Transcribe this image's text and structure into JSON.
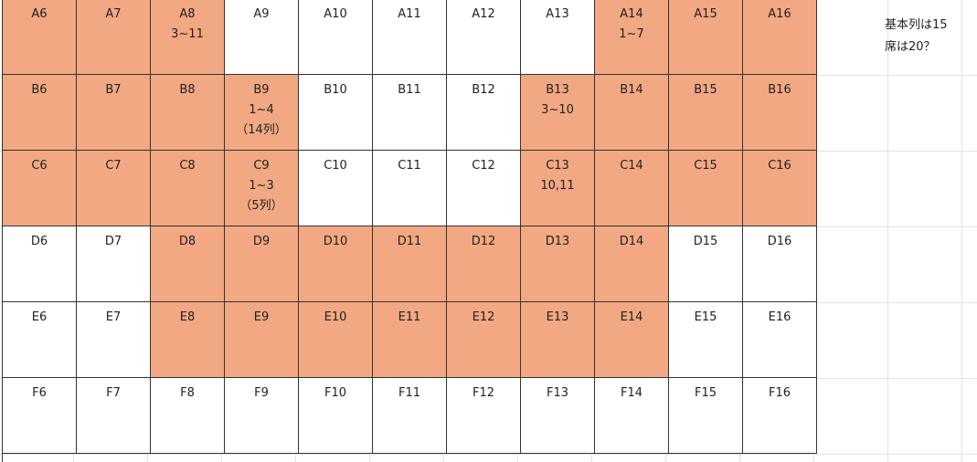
{
  "sheet": {
    "rows": [
      {
        "cells": [
          {
            "text": "A6",
            "highlight": true
          },
          {
            "text": "A7",
            "highlight": true
          },
          {
            "text": "A8\n3~11",
            "highlight": true
          },
          {
            "text": "A9",
            "highlight": false
          },
          {
            "text": "A10",
            "highlight": false
          },
          {
            "text": "A11",
            "highlight": false
          },
          {
            "text": "A12",
            "highlight": false
          },
          {
            "text": "A13",
            "highlight": false
          },
          {
            "text": "A14\n1~7",
            "highlight": true
          },
          {
            "text": "A15",
            "highlight": true
          },
          {
            "text": "A16",
            "highlight": true
          }
        ]
      },
      {
        "cells": [
          {
            "text": "B6",
            "highlight": true
          },
          {
            "text": "B7",
            "highlight": true
          },
          {
            "text": "B8",
            "highlight": true
          },
          {
            "text": "B9\n1~4\n（14列）",
            "highlight": true
          },
          {
            "text": "B10",
            "highlight": false
          },
          {
            "text": "B11",
            "highlight": false
          },
          {
            "text": "B12",
            "highlight": false
          },
          {
            "text": "B13\n3~10",
            "highlight": true
          },
          {
            "text": "B14",
            "highlight": true
          },
          {
            "text": "B15",
            "highlight": true
          },
          {
            "text": "B16",
            "highlight": true
          }
        ]
      },
      {
        "cells": [
          {
            "text": "C6",
            "highlight": true
          },
          {
            "text": "C7",
            "highlight": true
          },
          {
            "text": "C8",
            "highlight": true
          },
          {
            "text": "C9\n1~3\n（5列）",
            "highlight": true
          },
          {
            "text": "C10",
            "highlight": false
          },
          {
            "text": "C11",
            "highlight": false
          },
          {
            "text": "C12",
            "highlight": false
          },
          {
            "text": "C13\n10,11",
            "highlight": true
          },
          {
            "text": "C14",
            "highlight": true
          },
          {
            "text": "C15",
            "highlight": true
          },
          {
            "text": "C16",
            "highlight": true
          }
        ]
      },
      {
        "cells": [
          {
            "text": "D6",
            "highlight": false
          },
          {
            "text": "D7",
            "highlight": false
          },
          {
            "text": "D8",
            "highlight": true
          },
          {
            "text": "D9",
            "highlight": true
          },
          {
            "text": "D10",
            "highlight": true
          },
          {
            "text": "D11",
            "highlight": true
          },
          {
            "text": "D12",
            "highlight": true
          },
          {
            "text": "D13",
            "highlight": true
          },
          {
            "text": "D14",
            "highlight": true
          },
          {
            "text": "D15",
            "highlight": false
          },
          {
            "text": "D16",
            "highlight": false
          }
        ]
      },
      {
        "cells": [
          {
            "text": "E6",
            "highlight": false
          },
          {
            "text": "E7",
            "highlight": false
          },
          {
            "text": "E8",
            "highlight": true
          },
          {
            "text": "E9",
            "highlight": true
          },
          {
            "text": "E10",
            "highlight": true
          },
          {
            "text": "E11",
            "highlight": true
          },
          {
            "text": "E12",
            "highlight": true
          },
          {
            "text": "E13",
            "highlight": true
          },
          {
            "text": "E14",
            "highlight": true
          },
          {
            "text": "E15",
            "highlight": false
          },
          {
            "text": "E16",
            "highlight": false
          }
        ]
      },
      {
        "cells": [
          {
            "text": "F6",
            "highlight": false
          },
          {
            "text": "F7",
            "highlight": false
          },
          {
            "text": "F8",
            "highlight": false
          },
          {
            "text": "F9",
            "highlight": false
          },
          {
            "text": "F10",
            "highlight": false
          },
          {
            "text": "F11",
            "highlight": false
          },
          {
            "text": "F12",
            "highlight": false
          },
          {
            "text": "F13",
            "highlight": false
          },
          {
            "text": "F14",
            "highlight": false
          },
          {
            "text": "F15",
            "highlight": false
          },
          {
            "text": "F16",
            "highlight": false
          }
        ]
      }
    ],
    "note": "基本列は15\n席は20？",
    "colors": {
      "highlight": "#f2a882",
      "border": "#333333",
      "gridline": "#e3e3e3"
    }
  }
}
